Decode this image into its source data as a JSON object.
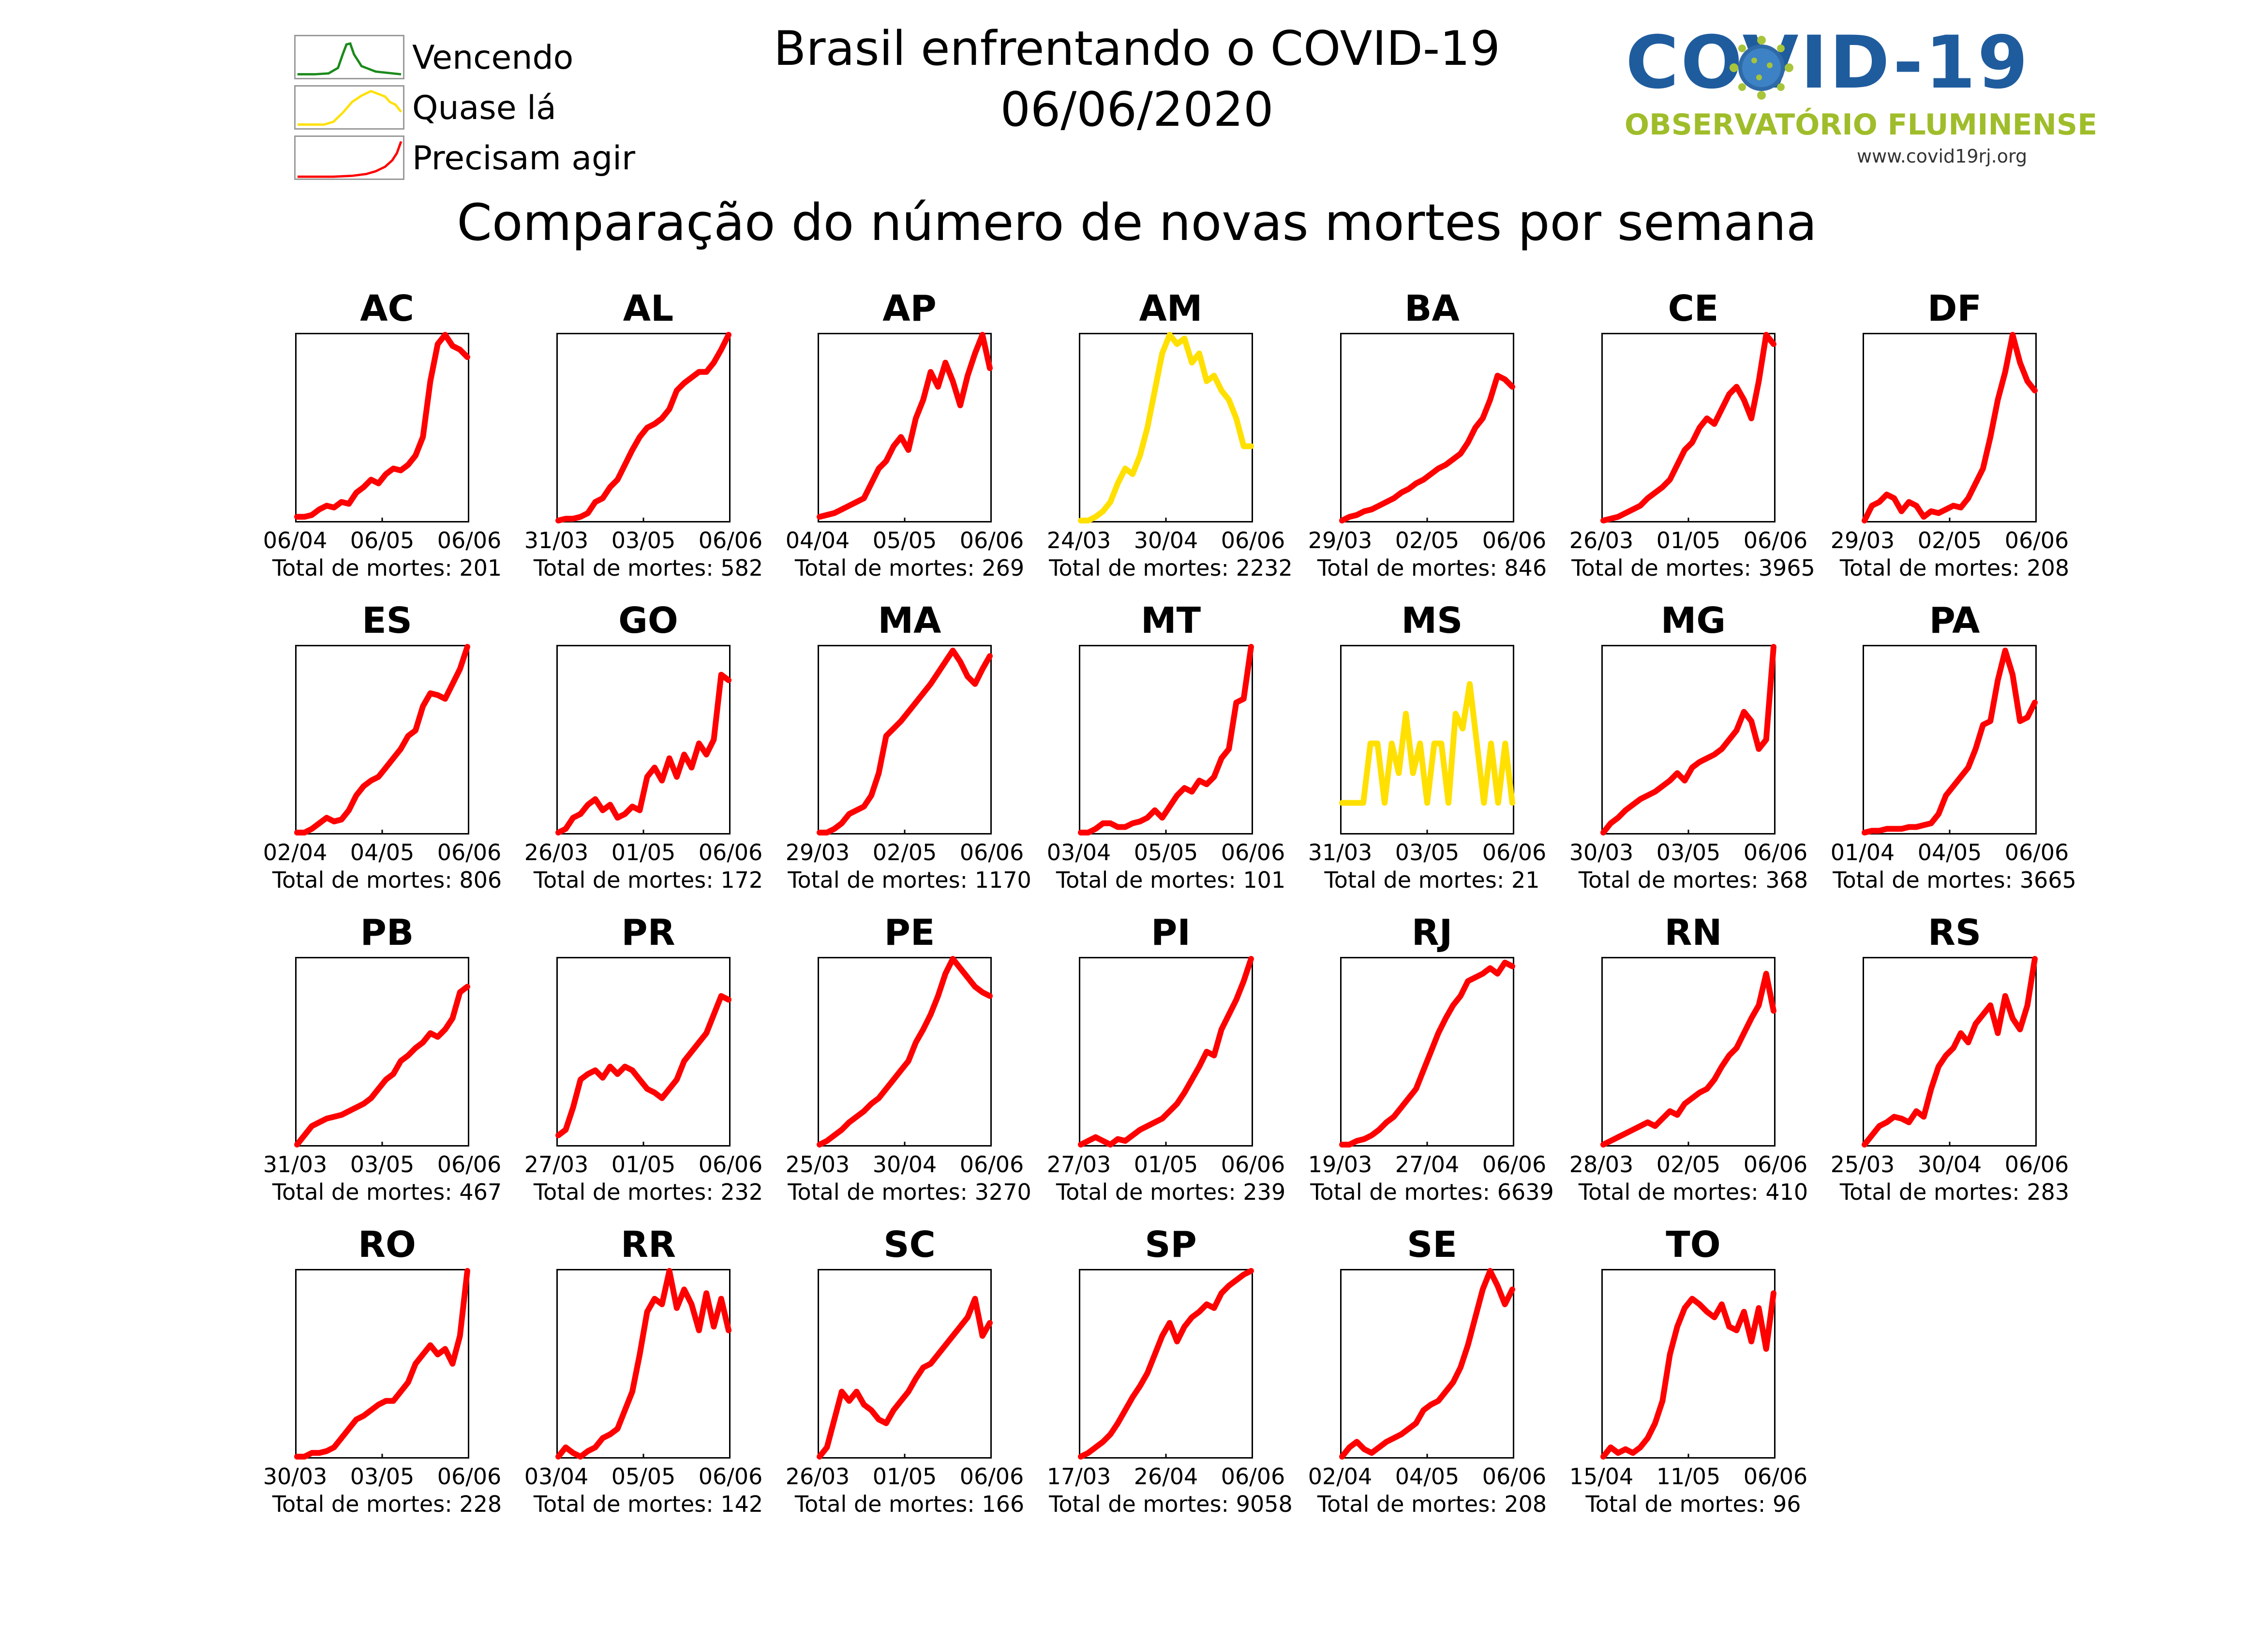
{
  "header": {
    "title_line1": "Brasil enfrentando o COVID-19",
    "title_line2": "06/06/2020",
    "subtitle": "Comparação do número de novas mortes por semana"
  },
  "legend": [
    {
      "label": "Vencendo",
      "color": "#1a8a1a"
    },
    {
      "label": "Quase lá",
      "color": "#ffe000"
    },
    {
      "label": "Precisam agir",
      "color": "#ff0000"
    }
  ],
  "logo": {
    "word": "COVID-19",
    "subtitle": "OBSERVATÓRIO FLUMINENSE",
    "url": "www.covid19rj.org"
  },
  "colors": {
    "red": "#ff0000",
    "yellow": "#ffe000",
    "green": "#1a8a1a"
  },
  "total_prefix": "Total de mortes:",
  "chart_data": [
    {
      "type": "line",
      "title": "AC",
      "status": "red",
      "x_ticks": [
        "06/04",
        "06/05",
        "06/06"
      ],
      "total": 201,
      "y": [
        0.02,
        0.02,
        0.03,
        0.06,
        0.08,
        0.07,
        0.1,
        0.09,
        0.15,
        0.18,
        0.22,
        0.2,
        0.25,
        0.28,
        0.27,
        0.3,
        0.35,
        0.45,
        0.75,
        0.95,
        1.0,
        0.94,
        0.92,
        0.88
      ]
    },
    {
      "type": "line",
      "title": "AL",
      "status": "red",
      "x_ticks": [
        "31/03",
        "03/05",
        "06/06"
      ],
      "total": 582,
      "y": [
        0.0,
        0.01,
        0.01,
        0.02,
        0.04,
        0.1,
        0.12,
        0.18,
        0.22,
        0.3,
        0.38,
        0.45,
        0.5,
        0.52,
        0.55,
        0.6,
        0.7,
        0.74,
        0.77,
        0.8,
        0.8,
        0.85,
        0.92,
        1.0
      ]
    },
    {
      "type": "line",
      "title": "AP",
      "status": "red",
      "x_ticks": [
        "04/04",
        "05/05",
        "06/06"
      ],
      "total": 269,
      "y": [
        0.02,
        0.03,
        0.04,
        0.06,
        0.08,
        0.1,
        0.12,
        0.2,
        0.28,
        0.32,
        0.4,
        0.45,
        0.38,
        0.55,
        0.65,
        0.8,
        0.72,
        0.85,
        0.75,
        0.62,
        0.78,
        0.9,
        1.0,
        0.82
      ]
    },
    {
      "type": "line",
      "title": "AM",
      "status": "yellow",
      "x_ticks": [
        "24/03",
        "30/04",
        "06/06"
      ],
      "total": 2232,
      "y": [
        0.0,
        0.0,
        0.02,
        0.05,
        0.1,
        0.2,
        0.28,
        0.25,
        0.35,
        0.5,
        0.7,
        0.9,
        1.0,
        0.95,
        0.98,
        0.85,
        0.9,
        0.75,
        0.78,
        0.7,
        0.65,
        0.55,
        0.4,
        0.4
      ]
    },
    {
      "type": "line",
      "title": "BA",
      "status": "red",
      "x_ticks": [
        "29/03",
        "02/05",
        "06/06"
      ],
      "total": 846,
      "y": [
        0.0,
        0.02,
        0.03,
        0.05,
        0.06,
        0.08,
        0.1,
        0.12,
        0.15,
        0.17,
        0.2,
        0.22,
        0.25,
        0.28,
        0.3,
        0.33,
        0.36,
        0.42,
        0.5,
        0.55,
        0.65,
        0.78,
        0.76,
        0.72
      ]
    },
    {
      "type": "line",
      "title": "CE",
      "status": "red",
      "x_ticks": [
        "26/03",
        "01/05",
        "06/06"
      ],
      "total": 3965,
      "y": [
        0.0,
        0.01,
        0.02,
        0.04,
        0.06,
        0.08,
        0.12,
        0.15,
        0.18,
        0.22,
        0.3,
        0.38,
        0.42,
        0.5,
        0.55,
        0.52,
        0.6,
        0.68,
        0.72,
        0.65,
        0.55,
        0.75,
        1.0,
        0.95
      ]
    },
    {
      "type": "line",
      "title": "DF",
      "status": "red",
      "x_ticks": [
        "29/03",
        "02/05",
        "06/06"
      ],
      "total": 208,
      "y": [
        0.0,
        0.08,
        0.1,
        0.14,
        0.12,
        0.05,
        0.1,
        0.08,
        0.02,
        0.05,
        0.04,
        0.06,
        0.08,
        0.07,
        0.12,
        0.2,
        0.28,
        0.45,
        0.65,
        0.8,
        1.0,
        0.85,
        0.75,
        0.7
      ]
    },
    {
      "type": "line",
      "title": "ES",
      "status": "red",
      "x_ticks": [
        "02/04",
        "04/05",
        "06/06"
      ],
      "total": 806,
      "y": [
        0.0,
        0.0,
        0.02,
        0.05,
        0.08,
        0.06,
        0.07,
        0.12,
        0.2,
        0.25,
        0.28,
        0.3,
        0.35,
        0.4,
        0.45,
        0.52,
        0.55,
        0.68,
        0.75,
        0.74,
        0.72,
        0.8,
        0.88,
        1.0
      ]
    },
    {
      "type": "line",
      "title": "GO",
      "status": "red",
      "x_ticks": [
        "26/03",
        "01/05",
        "06/06"
      ],
      "total": 172,
      "y": [
        0.0,
        0.02,
        0.08,
        0.1,
        0.15,
        0.18,
        0.12,
        0.15,
        0.08,
        0.1,
        0.14,
        0.12,
        0.3,
        0.35,
        0.28,
        0.4,
        0.3,
        0.42,
        0.35,
        0.48,
        0.42,
        0.5,
        0.85,
        0.82
      ]
    },
    {
      "type": "line",
      "title": "MA",
      "status": "red",
      "x_ticks": [
        "29/03",
        "02/05",
        "06/06"
      ],
      "total": 1170,
      "y": [
        0.0,
        0.0,
        0.02,
        0.05,
        0.1,
        0.12,
        0.14,
        0.2,
        0.32,
        0.52,
        0.56,
        0.6,
        0.65,
        0.7,
        0.75,
        0.8,
        0.86,
        0.92,
        0.98,
        0.92,
        0.84,
        0.8,
        0.88,
        0.95
      ]
    },
    {
      "type": "line",
      "title": "MT",
      "status": "red",
      "x_ticks": [
        "03/04",
        "05/05",
        "06/06"
      ],
      "total": 101,
      "y": [
        0.0,
        0.0,
        0.02,
        0.05,
        0.05,
        0.03,
        0.03,
        0.05,
        0.06,
        0.08,
        0.12,
        0.08,
        0.14,
        0.2,
        0.24,
        0.22,
        0.28,
        0.26,
        0.3,
        0.4,
        0.45,
        0.7,
        0.72,
        1.0
      ]
    },
    {
      "type": "line",
      "title": "MS",
      "status": "yellow",
      "x_ticks": [
        "31/03",
        "03/05",
        "06/06"
      ],
      "total": 21,
      "y": [
        0.16,
        0.16,
        0.16,
        0.16,
        0.48,
        0.48,
        0.16,
        0.48,
        0.32,
        0.64,
        0.32,
        0.48,
        0.16,
        0.48,
        0.48,
        0.16,
        0.64,
        0.56,
        0.8,
        0.48,
        0.16,
        0.48,
        0.16,
        0.48,
        0.16
      ]
    },
    {
      "type": "line",
      "title": "MG",
      "status": "red",
      "x_ticks": [
        "30/03",
        "03/05",
        "06/06"
      ],
      "total": 368,
      "y": [
        0.0,
        0.05,
        0.08,
        0.12,
        0.15,
        0.18,
        0.2,
        0.22,
        0.25,
        0.28,
        0.32,
        0.28,
        0.35,
        0.38,
        0.4,
        0.42,
        0.45,
        0.5,
        0.55,
        0.65,
        0.6,
        0.45,
        0.5,
        1.0
      ]
    },
    {
      "type": "line",
      "title": "PA",
      "status": "red",
      "x_ticks": [
        "01/04",
        "04/05",
        "06/06"
      ],
      "total": 3665,
      "y": [
        0.0,
        0.01,
        0.01,
        0.02,
        0.02,
        0.02,
        0.03,
        0.03,
        0.04,
        0.05,
        0.1,
        0.2,
        0.25,
        0.3,
        0.35,
        0.45,
        0.58,
        0.6,
        0.82,
        0.98,
        0.85,
        0.6,
        0.62,
        0.7
      ]
    },
    {
      "type": "line",
      "title": "PB",
      "status": "red",
      "x_ticks": [
        "31/03",
        "03/05",
        "06/06"
      ],
      "total": 467,
      "y": [
        0.0,
        0.05,
        0.1,
        0.12,
        0.14,
        0.15,
        0.16,
        0.18,
        0.2,
        0.22,
        0.25,
        0.3,
        0.35,
        0.38,
        0.45,
        0.48,
        0.52,
        0.55,
        0.6,
        0.58,
        0.62,
        0.68,
        0.82,
        0.85
      ]
    },
    {
      "type": "line",
      "title": "PR",
      "status": "red",
      "x_ticks": [
        "27/03",
        "01/05",
        "06/06"
      ],
      "total": 232,
      "y": [
        0.05,
        0.08,
        0.2,
        0.35,
        0.38,
        0.4,
        0.36,
        0.42,
        0.38,
        0.42,
        0.4,
        0.35,
        0.3,
        0.28,
        0.25,
        0.3,
        0.35,
        0.45,
        0.5,
        0.55,
        0.6,
        0.7,
        0.8,
        0.78
      ]
    },
    {
      "type": "line",
      "title": "PE",
      "status": "red",
      "x_ticks": [
        "25/03",
        "30/04",
        "06/06"
      ],
      "total": 3270,
      "y": [
        0.0,
        0.02,
        0.05,
        0.08,
        0.12,
        0.15,
        0.18,
        0.22,
        0.25,
        0.3,
        0.35,
        0.4,
        0.45,
        0.55,
        0.62,
        0.7,
        0.8,
        0.92,
        1.0,
        0.95,
        0.9,
        0.85,
        0.82,
        0.8
      ]
    },
    {
      "type": "line",
      "title": "PI",
      "status": "red",
      "x_ticks": [
        "27/03",
        "01/05",
        "06/06"
      ],
      "total": 239,
      "y": [
        0.0,
        0.02,
        0.04,
        0.02,
        0.0,
        0.03,
        0.02,
        0.05,
        0.08,
        0.1,
        0.12,
        0.14,
        0.18,
        0.22,
        0.28,
        0.35,
        0.42,
        0.5,
        0.48,
        0.62,
        0.7,
        0.78,
        0.88,
        1.0
      ]
    },
    {
      "type": "line",
      "title": "RJ",
      "status": "red",
      "x_ticks": [
        "19/03",
        "27/04",
        "06/06"
      ],
      "total": 6639,
      "y": [
        0.0,
        0.0,
        0.02,
        0.03,
        0.05,
        0.08,
        0.12,
        0.15,
        0.2,
        0.25,
        0.3,
        0.4,
        0.5,
        0.6,
        0.68,
        0.75,
        0.8,
        0.88,
        0.9,
        0.92,
        0.95,
        0.92,
        0.98,
        0.96
      ]
    },
    {
      "type": "line",
      "title": "RN",
      "status": "red",
      "x_ticks": [
        "28/03",
        "02/05",
        "06/06"
      ],
      "total": 410,
      "y": [
        0.0,
        0.02,
        0.04,
        0.06,
        0.08,
        0.1,
        0.12,
        0.1,
        0.14,
        0.18,
        0.16,
        0.22,
        0.25,
        0.28,
        0.3,
        0.35,
        0.42,
        0.48,
        0.52,
        0.6,
        0.68,
        0.75,
        0.92,
        0.72
      ]
    },
    {
      "type": "line",
      "title": "RS",
      "status": "red",
      "x_ticks": [
        "25/03",
        "30/04",
        "06/06"
      ],
      "total": 283,
      "y": [
        0.0,
        0.05,
        0.1,
        0.12,
        0.15,
        0.14,
        0.12,
        0.18,
        0.15,
        0.3,
        0.42,
        0.48,
        0.52,
        0.6,
        0.55,
        0.65,
        0.7,
        0.75,
        0.6,
        0.8,
        0.68,
        0.62,
        0.75,
        1.0
      ]
    },
    {
      "type": "line",
      "title": "RO",
      "status": "red",
      "x_ticks": [
        "30/03",
        "03/05",
        "06/06"
      ],
      "total": 228,
      "y": [
        0.0,
        0.0,
        0.02,
        0.02,
        0.03,
        0.05,
        0.1,
        0.15,
        0.2,
        0.22,
        0.25,
        0.28,
        0.3,
        0.3,
        0.35,
        0.4,
        0.5,
        0.55,
        0.6,
        0.55,
        0.58,
        0.5,
        0.65,
        1.0
      ]
    },
    {
      "type": "line",
      "title": "RR",
      "status": "red",
      "x_ticks": [
        "03/04",
        "05/05",
        "06/06"
      ],
      "total": 142,
      "y": [
        0.0,
        0.05,
        0.02,
        0.0,
        0.03,
        0.05,
        0.1,
        0.12,
        0.15,
        0.25,
        0.35,
        0.55,
        0.78,
        0.85,
        0.82,
        1.0,
        0.8,
        0.9,
        0.82,
        0.68,
        0.88,
        0.7,
        0.85,
        0.68
      ]
    },
    {
      "type": "line",
      "title": "SC",
      "status": "red",
      "x_ticks": [
        "26/03",
        "01/05",
        "06/06"
      ],
      "total": 166,
      "y": [
        0.0,
        0.05,
        0.2,
        0.35,
        0.3,
        0.35,
        0.28,
        0.25,
        0.2,
        0.18,
        0.25,
        0.3,
        0.35,
        0.42,
        0.48,
        0.5,
        0.55,
        0.6,
        0.65,
        0.7,
        0.75,
        0.85,
        0.65,
        0.72
      ]
    },
    {
      "type": "line",
      "title": "SP",
      "status": "red",
      "x_ticks": [
        "17/03",
        "26/04",
        "06/06"
      ],
      "total": 9058,
      "y": [
        0.0,
        0.02,
        0.05,
        0.08,
        0.12,
        0.18,
        0.25,
        0.32,
        0.38,
        0.45,
        0.55,
        0.65,
        0.72,
        0.62,
        0.7,
        0.75,
        0.78,
        0.82,
        0.8,
        0.88,
        0.92,
        0.95,
        0.98,
        1.0
      ]
    },
    {
      "type": "line",
      "title": "SE",
      "status": "red",
      "x_ticks": [
        "02/04",
        "04/05",
        "06/06"
      ],
      "total": 208,
      "y": [
        0.0,
        0.05,
        0.08,
        0.04,
        0.02,
        0.05,
        0.08,
        0.1,
        0.12,
        0.15,
        0.18,
        0.25,
        0.28,
        0.3,
        0.35,
        0.4,
        0.48,
        0.6,
        0.75,
        0.9,
        1.0,
        0.92,
        0.82,
        0.9
      ]
    },
    {
      "type": "line",
      "title": "TO",
      "status": "red",
      "x_ticks": [
        "15/04",
        "11/05",
        "06/06"
      ],
      "total": 96,
      "y": [
        0.0,
        0.05,
        0.02,
        0.04,
        0.02,
        0.05,
        0.1,
        0.18,
        0.3,
        0.55,
        0.7,
        0.8,
        0.85,
        0.82,
        0.78,
        0.75,
        0.82,
        0.7,
        0.68,
        0.78,
        0.62,
        0.8,
        0.58,
        0.88
      ]
    }
  ]
}
